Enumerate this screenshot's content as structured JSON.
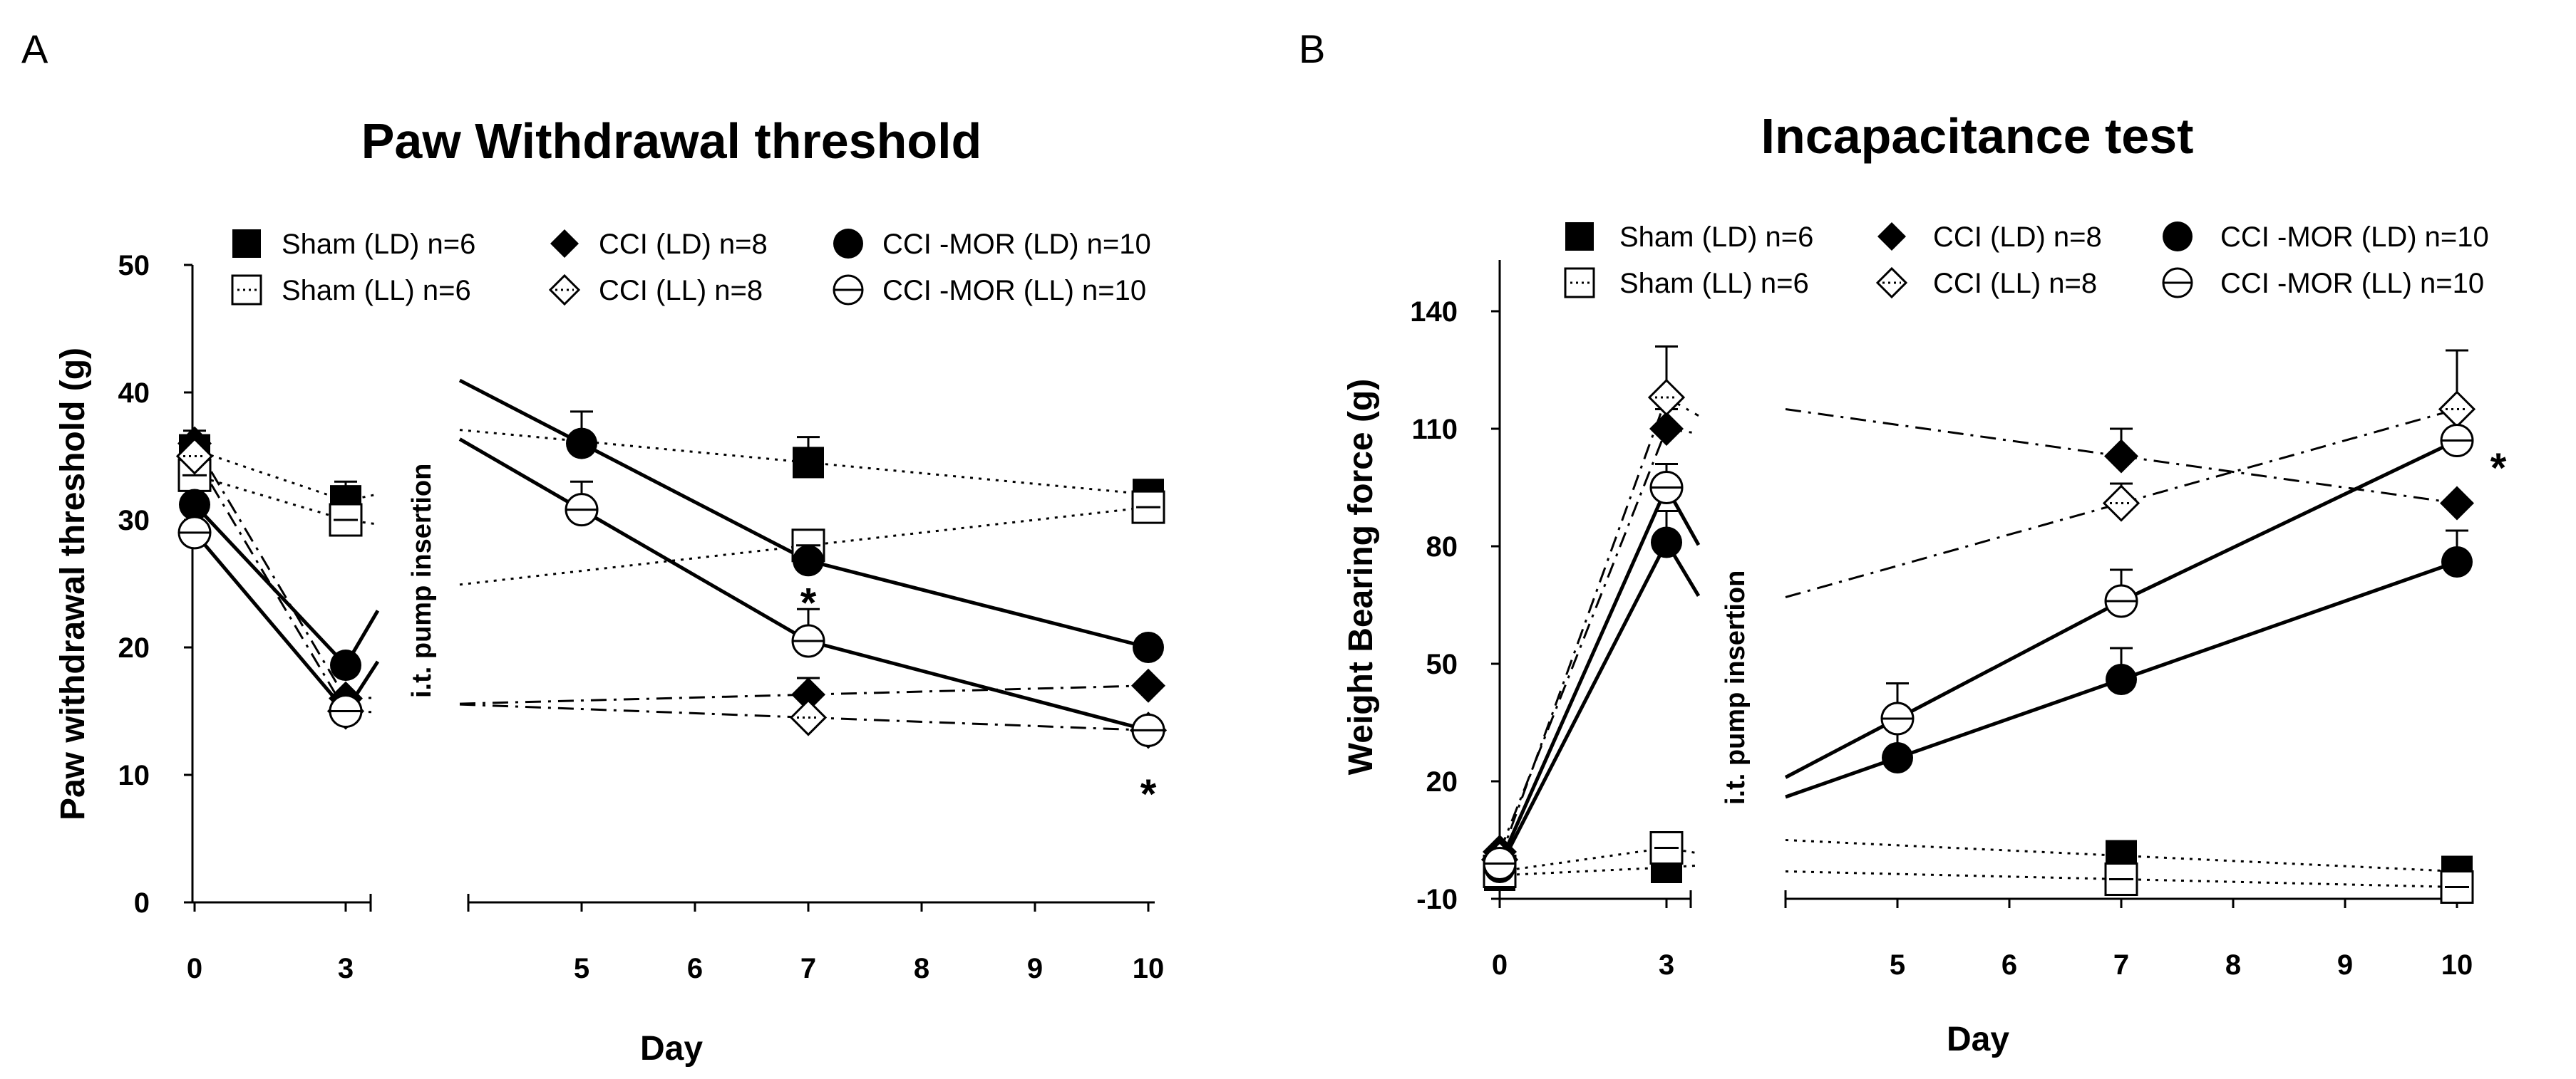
{
  "panels": [
    {
      "letter": "A",
      "title": "Paw Withdrawal threshold",
      "ylabel": "Paw withdrawal threshold (g)",
      "xlabel": "Day",
      "annotation": "i.t. pump insertion",
      "y_ticks": [
        "0",
        "10",
        "20",
        "30",
        "40",
        "50"
      ],
      "x_ticks_left": [
        "0",
        "3"
      ],
      "x_ticks_right": [
        "5",
        "6",
        "7",
        "8",
        "9",
        "10"
      ],
      "legend": [
        {
          "key": "sham_ld",
          "label": "Sham (LD) n=6"
        },
        {
          "key": "cci_ld",
          "label": "CCI (LD) n=8"
        },
        {
          "key": "mor_ld",
          "label": "CCI -MOR (LD) n=10"
        },
        {
          "key": "sham_ll",
          "label": "Sham (LL) n=6"
        },
        {
          "key": "cci_ll",
          "label": "CCI (LL) n=8"
        },
        {
          "key": "mor_ll",
          "label": "CCI -MOR (LL) n=10"
        }
      ],
      "stars": [
        {
          "day": 7,
          "y": 23.5,
          "text": "*"
        },
        {
          "day": 10,
          "y": 8.5,
          "text": "*"
        }
      ]
    },
    {
      "letter": "B",
      "title": "Incapacitance test",
      "ylabel": "Weight Bearing force (g)",
      "xlabel": "Day",
      "annotation": "i.t. pump insertion",
      "y_ticks": [
        "-10",
        "20",
        "50",
        "80",
        "110",
        "140"
      ],
      "x_ticks_left": [
        "0",
        "3"
      ],
      "x_ticks_right": [
        "5",
        "6",
        "7",
        "8",
        "9",
        "10"
      ],
      "legend": [
        {
          "key": "sham_ld",
          "label": "Sham (LD) n=6"
        },
        {
          "key": "cci_ld",
          "label": "CCI (LD) n=8"
        },
        {
          "key": "mor_ld",
          "label": "CCI -MOR (LD) n=10"
        },
        {
          "key": "sham_ll",
          "label": "Sham (LL) n=6"
        },
        {
          "key": "cci_ll",
          "label": "CCI (LL) n=8"
        },
        {
          "key": "mor_ll",
          "label": "CCI -MOR (LL) n=10"
        }
      ],
      "stars": [
        {
          "day": 10,
          "y": 100,
          "text": "*",
          "side": "right"
        }
      ]
    }
  ],
  "chart_data": [
    {
      "type": "line",
      "title": "Paw Withdrawal threshold",
      "xlabel": "Day",
      "ylabel": "Paw withdrawal threshold (g)",
      "ylim": [
        0,
        50
      ],
      "x_left": [
        0,
        3
      ],
      "x_right": [
        5,
        10
      ],
      "series": [
        {
          "key": "sham_ld",
          "name": "Sham (LD) n=6",
          "marker": "square-filled",
          "line": "dotted",
          "x": [
            0,
            3,
            7,
            10
          ],
          "values": [
            35.5,
            31.5,
            34.5,
            32
          ],
          "err": [
            1.5,
            1.5,
            2,
            0.5
          ]
        },
        {
          "key": "sham_ll",
          "name": "Sham (LL) n=6",
          "marker": "square-open",
          "line": "dotted",
          "x": [
            0,
            3,
            7,
            10
          ],
          "values": [
            33.5,
            30,
            28,
            31
          ],
          "err": [
            2,
            1.2,
            1.2,
            0.8
          ]
        },
        {
          "key": "cci_ld",
          "name": "CCI (LD) n=8",
          "marker": "diamond-filled",
          "line": "dashdot",
          "x": [
            0,
            3,
            7,
            10
          ],
          "values": [
            36,
            16,
            16.3,
            17
          ],
          "err": [
            1,
            1,
            1.3,
            1.2
          ]
        },
        {
          "key": "cci_ll",
          "name": "CCI (LL) n=8",
          "marker": "diamond-open",
          "line": "dashdot",
          "x": [
            0,
            3,
            7,
            10
          ],
          "values": [
            35,
            15,
            14.5,
            13.5
          ],
          "err": [
            1,
            0.8,
            1,
            1
          ]
        },
        {
          "key": "mor_ld",
          "name": "CCI -MOR (LD) n=10",
          "marker": "circle-filled",
          "line": "solid",
          "x": [
            0,
            3,
            5,
            7,
            10
          ],
          "values": [
            31.2,
            18.6,
            36,
            26.8,
            20
          ],
          "err": [
            1.2,
            1,
            2.5,
            1.2,
            0.8
          ]
        },
        {
          "key": "mor_ll",
          "name": "CCI -MOR (LL) n=10",
          "marker": "circle-open",
          "line": "solid",
          "x": [
            0,
            3,
            5,
            7,
            10
          ],
          "values": [
            29,
            15,
            30.8,
            20.5,
            13.5
          ],
          "err": [
            1.2,
            1,
            2.2,
            2.5,
            0.8
          ]
        }
      ]
    },
    {
      "type": "line",
      "title": "Incapacitance test",
      "xlabel": "Day",
      "ylabel": "Weight Bearing force (g)",
      "ylim": [
        -10,
        150
      ],
      "x_left": [
        0,
        3
      ],
      "x_right": [
        5,
        10
      ],
      "series": [
        {
          "key": "sham_ld",
          "name": "Sham (LD) n=6",
          "marker": "square-filled",
          "line": "dotted",
          "x": [
            0,
            3,
            7,
            10
          ],
          "values": [
            -4,
            -2,
            1,
            -3
          ],
          "err": [
            2,
            2,
            2,
            2
          ]
        },
        {
          "key": "sham_ll",
          "name": "Sham (LL) n=6",
          "marker": "square-open",
          "line": "dotted",
          "x": [
            0,
            3,
            7,
            10
          ],
          "values": [
            -3,
            3,
            -5,
            -7
          ],
          "err": [
            2,
            3,
            2,
            2
          ]
        },
        {
          "key": "cci_ld",
          "name": "CCI (LD) n=8",
          "marker": "diamond-filled",
          "line": "dashdot",
          "x": [
            0,
            3,
            7,
            10
          ],
          "values": [
            2,
            110,
            103,
            91
          ],
          "err": [
            2,
            5,
            7,
            4
          ]
        },
        {
          "key": "cci_ll",
          "name": "CCI (LL) n=8",
          "marker": "diamond-open",
          "line": "dashdot",
          "x": [
            0,
            3,
            7,
            10
          ],
          "values": [
            0,
            118,
            91,
            115
          ],
          "err": [
            2,
            13,
            5,
            15
          ]
        },
        {
          "key": "mor_ld",
          "name": "CCI -MOR (LD) n=10",
          "marker": "circle-filled",
          "line": "solid",
          "x": [
            0,
            3,
            5,
            7,
            10
          ],
          "values": [
            -2,
            81,
            26,
            46,
            76
          ],
          "err": [
            2,
            8,
            9,
            8,
            8
          ]
        },
        {
          "key": "mor_ll",
          "name": "CCI -MOR (LL) n=10",
          "marker": "circle-open",
          "line": "solid",
          "x": [
            0,
            3,
            5,
            7,
            10
          ],
          "values": [
            -1,
            95,
            36,
            66,
            107
          ],
          "err": [
            2,
            6,
            9,
            8,
            8
          ]
        }
      ]
    }
  ]
}
